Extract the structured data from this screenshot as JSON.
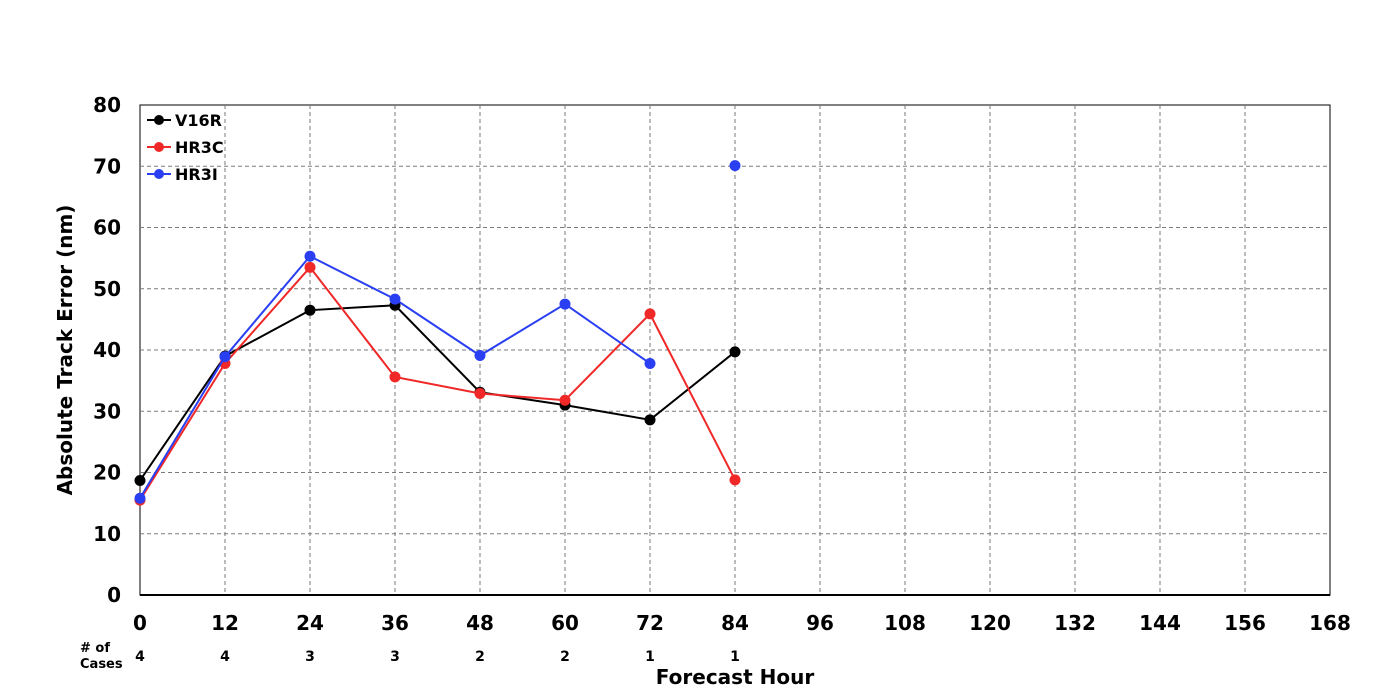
{
  "chart_data": {
    "type": "line",
    "title": "",
    "xlabel": "Forecast Hour",
    "ylabel": "Absolute Track Error (nm)",
    "xlim": [
      0,
      168
    ],
    "ylim": [
      0,
      80
    ],
    "xticks": [
      "0",
      "12",
      "24",
      "36",
      "48",
      "60",
      "72",
      "84",
      "96",
      "108",
      "120",
      "132",
      "144",
      "156",
      "168"
    ],
    "yticks": [
      "0",
      "10",
      "20",
      "30",
      "40",
      "50",
      "60",
      "70",
      "80"
    ],
    "grid": true,
    "legend_position": "top-left",
    "cases_label": [
      "# of",
      "Cases"
    ],
    "cases_hours": [
      0,
      12,
      24,
      36,
      48,
      60,
      72,
      84
    ],
    "cases": [
      "4",
      "4",
      "3",
      "3",
      "2",
      "2",
      "1",
      "1"
    ],
    "series": [
      {
        "name": "V16R",
        "color": "#000000",
        "x": [
          0,
          12,
          24,
          36,
          48,
          60,
          72,
          84
        ],
        "values": [
          18.7,
          39.0,
          46.5,
          47.3,
          33.1,
          31.0,
          28.6,
          39.7
        ]
      },
      {
        "name": "HR3C",
        "color": "#f02828",
        "x": [
          0,
          12,
          24,
          36,
          48,
          60,
          72,
          84
        ],
        "values": [
          15.5,
          37.8,
          53.5,
          35.6,
          32.9,
          31.8,
          45.9,
          18.8
        ]
      },
      {
        "name": "HR3I",
        "color": "#2a3ff2",
        "x": [
          0,
          12,
          24,
          36,
          48,
          60,
          72
        ],
        "values": [
          15.8,
          38.9,
          55.3,
          48.3,
          39.1,
          47.5,
          37.8
        ],
        "marker_only": {
          "x": 84,
          "value": 70.1
        }
      }
    ]
  }
}
